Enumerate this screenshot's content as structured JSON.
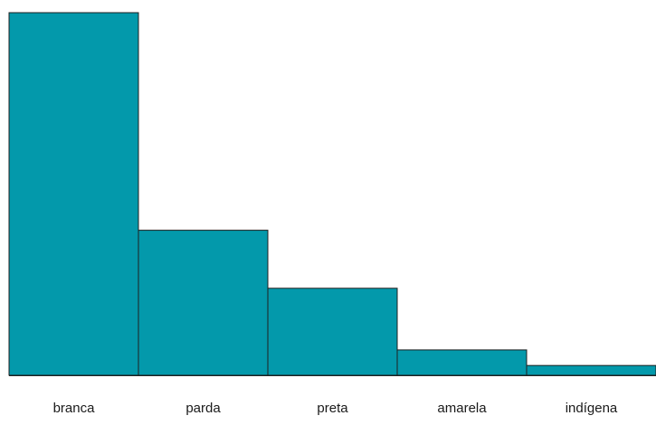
{
  "chart_data": {
    "type": "bar",
    "categories": [
      "branca",
      "parda",
      "preta",
      "amarela",
      "indígena"
    ],
    "values": [
      100,
      40,
      24,
      7,
      2.7
    ],
    "ylim": [
      0,
      100
    ],
    "grid": false,
    "legend": "none",
    "bar_color": "#0399AB",
    "bar_outline_color": "#1f1f1f",
    "background_color": "#ffffff"
  }
}
